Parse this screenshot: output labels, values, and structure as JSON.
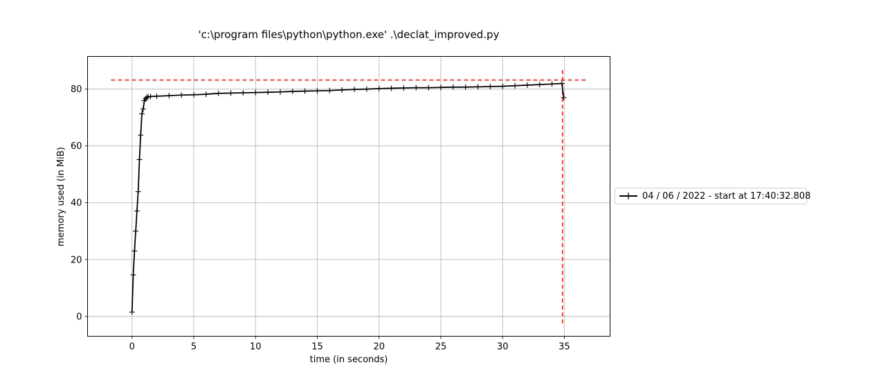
{
  "chart_data": {
    "type": "line",
    "title": "'c:\\program files\\python\\python.exe' .\\declat_improved.py",
    "xlabel": "time (in seconds)",
    "ylabel": "memory used (in MiB)",
    "xlim": [
      -3.6,
      38.7
    ],
    "ylim": [
      -7,
      91.5
    ],
    "xticks": [
      0,
      5,
      10,
      15,
      20,
      25,
      30,
      35
    ],
    "yticks": [
      0,
      20,
      40,
      60,
      80
    ],
    "grid": true,
    "legend_placement": "right, outside plot area",
    "series": [
      {
        "name": "04 / 06 / 2022 - start at 17:40:32.808",
        "color": "#000000",
        "marker": "+",
        "x": [
          0.0,
          0.1,
          0.2,
          0.3,
          0.4,
          0.5,
          0.6,
          0.7,
          0.8,
          0.9,
          1.0,
          1.1,
          1.2,
          1.3,
          1.5,
          2.0,
          3.0,
          4.0,
          5.0,
          6.0,
          7.0,
          8.0,
          9.0,
          10.0,
          11.0,
          12.0,
          13.0,
          14.0,
          15.0,
          16.0,
          17.0,
          18.0,
          19.0,
          20.0,
          21.0,
          22.0,
          23.0,
          24.0,
          25.0,
          26.0,
          27.0,
          28.0,
          29.0,
          30.0,
          31.0,
          32.0,
          33.0,
          34.0,
          34.8,
          34.95
        ],
        "y": [
          1.5,
          14.6,
          23.0,
          30.0,
          37.1,
          43.9,
          55.2,
          63.8,
          71.3,
          73.0,
          75.9,
          76.6,
          77.1,
          77.3,
          77.4,
          77.5,
          77.7,
          77.9,
          78.0,
          78.2,
          78.5,
          78.6,
          78.7,
          78.8,
          78.9,
          79.0,
          79.2,
          79.3,
          79.4,
          79.5,
          79.7,
          79.9,
          80.0,
          80.2,
          80.3,
          80.4,
          80.5,
          80.5,
          80.6,
          80.7,
          80.7,
          80.8,
          80.9,
          81.0,
          81.2,
          81.4,
          81.6,
          81.8,
          82.0,
          77.0
        ]
      }
    ],
    "annotations": {
      "max_memory_hline": {
        "y": 83.2,
        "x_range": [
          -1.7,
          36.8
        ],
        "color": "#d62728",
        "style": "dashed"
      },
      "max_time_vline": {
        "x": 34.85,
        "y_range": [
          -2.5,
          87.3
        ],
        "color": "#d62728",
        "style": "dashed"
      }
    }
  }
}
